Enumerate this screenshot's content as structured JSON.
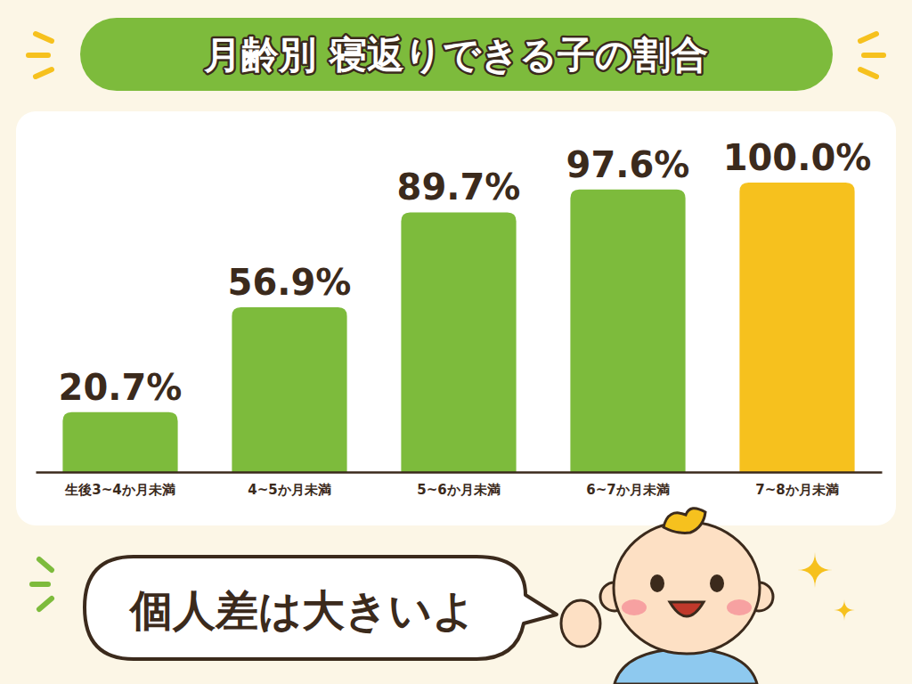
{
  "chart_data": {
    "type": "bar",
    "title": "月齢別 寝返りできる子の割合",
    "categories": [
      "生後3~4か月未満",
      "4~5か月未満",
      "5~6か月未満",
      "6~7か月未満",
      "7~8か月未満"
    ],
    "values": [
      20.7,
      56.9,
      89.7,
      97.6,
      100.0
    ],
    "value_labels": [
      "20.7%",
      "56.9%",
      "89.7%",
      "97.6%",
      "100.0%"
    ],
    "colors": [
      "#7dbb3c",
      "#7dbb3c",
      "#7dbb3c",
      "#7dbb3c",
      "#f6c11e"
    ],
    "ylim": [
      0,
      100
    ],
    "data_labels": true,
    "tick_labels": "x",
    "annotation": "個人差は大きいよ"
  }
}
